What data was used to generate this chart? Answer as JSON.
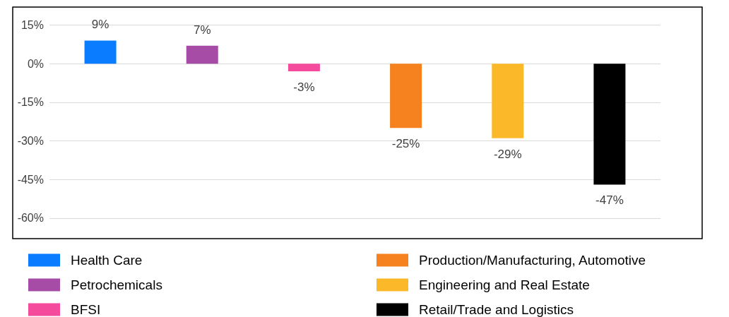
{
  "chart_data": {
    "type": "bar",
    "categories": [
      null,
      null,
      null,
      null,
      null,
      null
    ],
    "series": [
      {
        "name": "Health Care",
        "color": "#0a7cff",
        "values": [
          9,
          null,
          null,
          null,
          null,
          null
        ],
        "value_labels": [
          "9%",
          null,
          null,
          null,
          null,
          null
        ]
      },
      {
        "name": "Petrochemicals",
        "color": "#a64ca6",
        "values": [
          null,
          7,
          null,
          null,
          null,
          null
        ],
        "value_labels": [
          null,
          "7%",
          null,
          null,
          null,
          null
        ]
      },
      {
        "name": "BFSI",
        "color": "#f44b9c",
        "values": [
          null,
          null,
          -3,
          null,
          null,
          null
        ],
        "value_labels": [
          null,
          null,
          "-3%",
          null,
          null,
          null
        ]
      },
      {
        "name": "Production/Manufacturing, Automotive",
        "color": "#f5821f",
        "values": [
          null,
          null,
          null,
          -25,
          null,
          null
        ],
        "value_labels": [
          null,
          null,
          null,
          "-25%",
          null,
          null
        ]
      },
      {
        "name": "Engineering and Real Estate",
        "color": "#fbb829",
        "values": [
          null,
          null,
          null,
          null,
          -29,
          null
        ],
        "value_labels": [
          null,
          null,
          null,
          null,
          "-29%",
          null
        ]
      },
      {
        "name": "Retail/Trade and Logistics",
        "color": "#000000",
        "values": [
          null,
          null,
          null,
          null,
          null,
          -47
        ],
        "value_labels": [
          null,
          null,
          null,
          null,
          null,
          "-47%"
        ]
      }
    ],
    "ylim": [
      -68,
      22
    ],
    "yticks": [
      {
        "value": 15,
        "label": "15%"
      },
      {
        "value": 0,
        "label": "0%"
      },
      {
        "value": -15,
        "label": "-15%"
      },
      {
        "value": -30,
        "label": "-30%"
      },
      {
        "value": -45,
        "label": "-45%"
      },
      {
        "value": -60,
        "label": "-60%"
      }
    ],
    "grid": "y",
    "legend": "bottom",
    "tick_labels": "y"
  }
}
